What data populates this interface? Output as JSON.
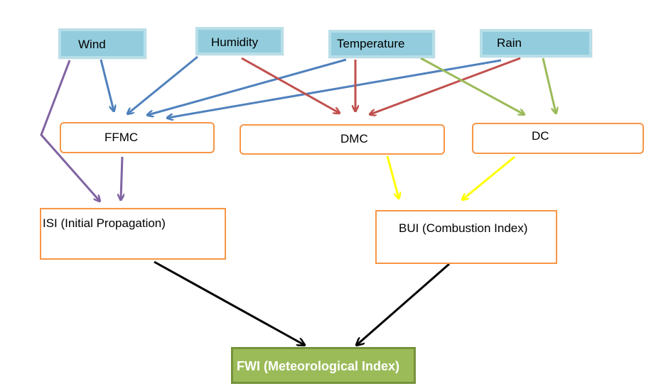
{
  "inputs": {
    "wind": "Wind",
    "humidity": "Humidity",
    "temperature": "Temperature",
    "rain": "Rain"
  },
  "codes": {
    "ffmc": "FFMC",
    "dmc": "DMC",
    "dc": "DC"
  },
  "indices": {
    "isi": "ISI (Initial Propagation)",
    "bui": "BUI (Combustion Index)"
  },
  "output": {
    "fwi": "FWI (Meteorological Index)"
  },
  "colors": {
    "input_fill": "#93cddd",
    "input_border": "#b7dee8",
    "code_border": "#f79646",
    "output_fill": "#9bbb59",
    "arrow_wind": "#8064a2",
    "arrow_blue": "#4f81bd",
    "arrow_red": "#c0504d",
    "arrow_green": "#9bbb59",
    "arrow_yellow": "#ffff00",
    "arrow_black": "#000000"
  },
  "edges": [
    {
      "from": "Wind",
      "to": "FFMC",
      "color": "arrow_blue"
    },
    {
      "from": "Wind",
      "to": "ISI (Initial Propagation)",
      "color": "arrow_wind"
    },
    {
      "from": "Humidity",
      "to": "FFMC",
      "color": "arrow_blue"
    },
    {
      "from": "Humidity",
      "to": "DMC",
      "color": "arrow_red"
    },
    {
      "from": "Temperature",
      "to": "FFMC",
      "color": "arrow_blue"
    },
    {
      "from": "Temperature",
      "to": "DMC",
      "color": "arrow_red"
    },
    {
      "from": "Temperature",
      "to": "DC",
      "color": "arrow_green"
    },
    {
      "from": "Rain",
      "to": "FFMC",
      "color": "arrow_blue"
    },
    {
      "from": "Rain",
      "to": "DMC",
      "color": "arrow_red"
    },
    {
      "from": "Rain",
      "to": "DC",
      "color": "arrow_green"
    },
    {
      "from": "FFMC",
      "to": "ISI (Initial Propagation)",
      "color": "arrow_wind"
    },
    {
      "from": "DMC",
      "to": "BUI (Combustion Index)",
      "color": "arrow_yellow"
    },
    {
      "from": "DC",
      "to": "BUI (Combustion Index)",
      "color": "arrow_yellow"
    },
    {
      "from": "ISI (Initial Propagation)",
      "to": "FWI (Meteorological Index)",
      "color": "arrow_black"
    },
    {
      "from": "BUI (Combustion Index)",
      "to": "FWI (Meteorological Index)",
      "color": "arrow_black"
    }
  ]
}
